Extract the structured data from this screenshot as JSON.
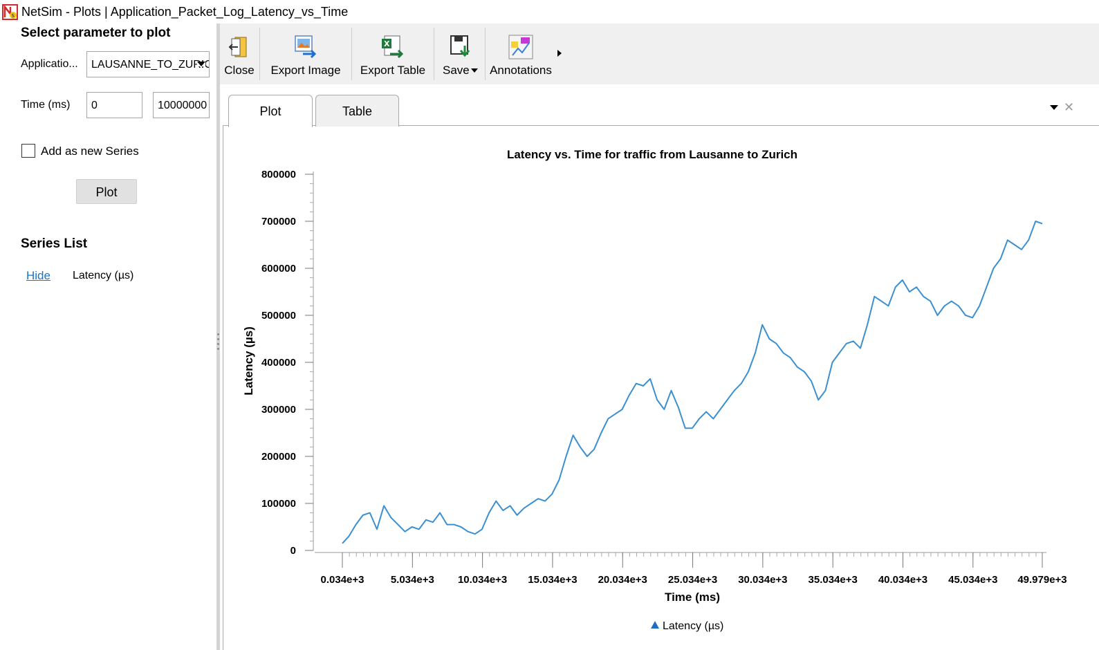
{
  "window": {
    "title": "NetSim - Plots | Application_Packet_Log_Latency_vs_Time"
  },
  "left_panel": {
    "select_heading": "Select parameter to plot",
    "application_label": "Applicatio...",
    "application_value": "LAUSANNE_TO_ZURICH",
    "time_label": "Time (ms)",
    "time_from": "0",
    "time_to": "10000000",
    "add_series_label": "Add as new Series",
    "add_series_checked": false,
    "plot_button": "Plot",
    "series_heading": "Series List",
    "series": [
      {
        "action": "Hide",
        "name": "Latency (µs)"
      }
    ]
  },
  "toolbar": {
    "close": "Close",
    "export_image": "Export Image",
    "export_table": "Export Table",
    "save": "Save",
    "annotations": "Annotations"
  },
  "tabs": {
    "plot": "Plot",
    "table": "Table",
    "active": "Plot"
  },
  "chart_data": {
    "type": "line",
    "title": "Latency vs. Time for traffic from Lausanne to Zurich",
    "xlabel": "Time (ms)",
    "ylabel": "Latency (µs)",
    "xlim": [
      34,
      49979
    ],
    "ylim": [
      0,
      800000
    ],
    "x_tick_labels": [
      "0.034e+3",
      "5.034e+3",
      "10.034e+3",
      "15.034e+3",
      "20.034e+3",
      "25.034e+3",
      "30.034e+3",
      "35.034e+3",
      "40.034e+3",
      "45.034e+3",
      "49.979e+3"
    ],
    "x_tick_values": [
      34,
      5034,
      10034,
      15034,
      20034,
      25034,
      30034,
      35034,
      40034,
      45034,
      49979
    ],
    "y_tick_labels": [
      "0",
      "100000",
      "200000",
      "300000",
      "400000",
      "500000",
      "600000",
      "700000",
      "800000"
    ],
    "y_tick_values": [
      0,
      100000,
      200000,
      300000,
      400000,
      500000,
      600000,
      700000,
      800000
    ],
    "grid": false,
    "legend_position": "bottom-center",
    "color": "#3a8fd0",
    "series": [
      {
        "name": "Latency (µs)",
        "x": [
          34,
          500,
          1000,
          1500,
          2000,
          2500,
          3000,
          3500,
          4000,
          4500,
          5000,
          5500,
          6000,
          6500,
          7000,
          7500,
          8000,
          8500,
          9000,
          9500,
          10000,
          10500,
          11000,
          11500,
          12000,
          12500,
          13000,
          13500,
          14000,
          14500,
          15000,
          15500,
          16000,
          16500,
          17000,
          17500,
          18000,
          18500,
          19000,
          19500,
          20000,
          20500,
          21000,
          21500,
          22000,
          22500,
          23000,
          23500,
          24000,
          24500,
          25000,
          25500,
          26000,
          26500,
          27000,
          27500,
          28000,
          28500,
          29000,
          29500,
          30000,
          30500,
          31000,
          31500,
          32000,
          32500,
          33000,
          33500,
          34000,
          34500,
          35000,
          35500,
          36000,
          36500,
          37000,
          37500,
          38000,
          38500,
          39000,
          39500,
          40000,
          40500,
          41000,
          41500,
          42000,
          42500,
          43000,
          43500,
          44000,
          44500,
          45000,
          45500,
          46000,
          46500,
          47000,
          47500,
          48000,
          48500,
          49000,
          49500,
          49979
        ],
        "y": [
          15000,
          30000,
          55000,
          75000,
          80000,
          45000,
          95000,
          70000,
          55000,
          40000,
          50000,
          45000,
          65000,
          60000,
          80000,
          55000,
          55000,
          50000,
          40000,
          35000,
          45000,
          80000,
          105000,
          85000,
          95000,
          75000,
          90000,
          100000,
          110000,
          105000,
          120000,
          150000,
          200000,
          245000,
          220000,
          200000,
          215000,
          250000,
          280000,
          290000,
          300000,
          330000,
          355000,
          350000,
          365000,
          320000,
          300000,
          340000,
          305000,
          260000,
          260000,
          280000,
          295000,
          280000,
          300000,
          320000,
          340000,
          355000,
          380000,
          420000,
          480000,
          450000,
          440000,
          420000,
          410000,
          390000,
          380000,
          360000,
          320000,
          340000,
          400000,
          420000,
          440000,
          445000,
          430000,
          480000,
          540000,
          530000,
          520000,
          560000,
          575000,
          550000,
          560000,
          540000,
          530000,
          500000,
          520000,
          530000,
          520000,
          500000,
          495000,
          520000,
          560000,
          600000,
          620000,
          660000,
          650000,
          640000,
          660000,
          700000,
          695000
        ]
      }
    ]
  }
}
